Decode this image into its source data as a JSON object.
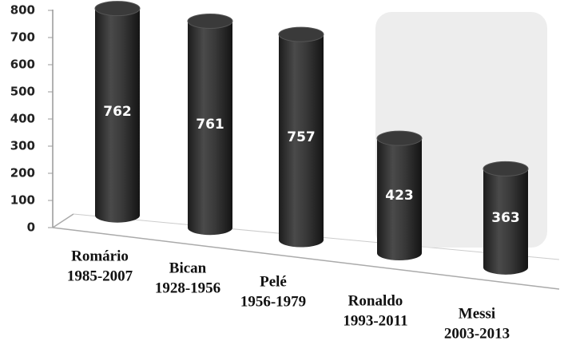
{
  "chart_data": {
    "type": "bar",
    "style": "3d-cylinder",
    "categories": [
      [
        "Romário",
        "1985-2007"
      ],
      [
        "Bican",
        "1928-1956"
      ],
      [
        "Pelé",
        "1956-1979"
      ],
      [
        "Ronaldo",
        "1993-2011"
      ],
      [
        "Messi",
        "2003-2013"
      ]
    ],
    "values": [
      762,
      761,
      757,
      423,
      363
    ],
    "color": "#3a3a3a",
    "ylim": [
      0,
      800
    ],
    "yticks": [
      0,
      100,
      200,
      300,
      400,
      500,
      600,
      700,
      800
    ]
  }
}
